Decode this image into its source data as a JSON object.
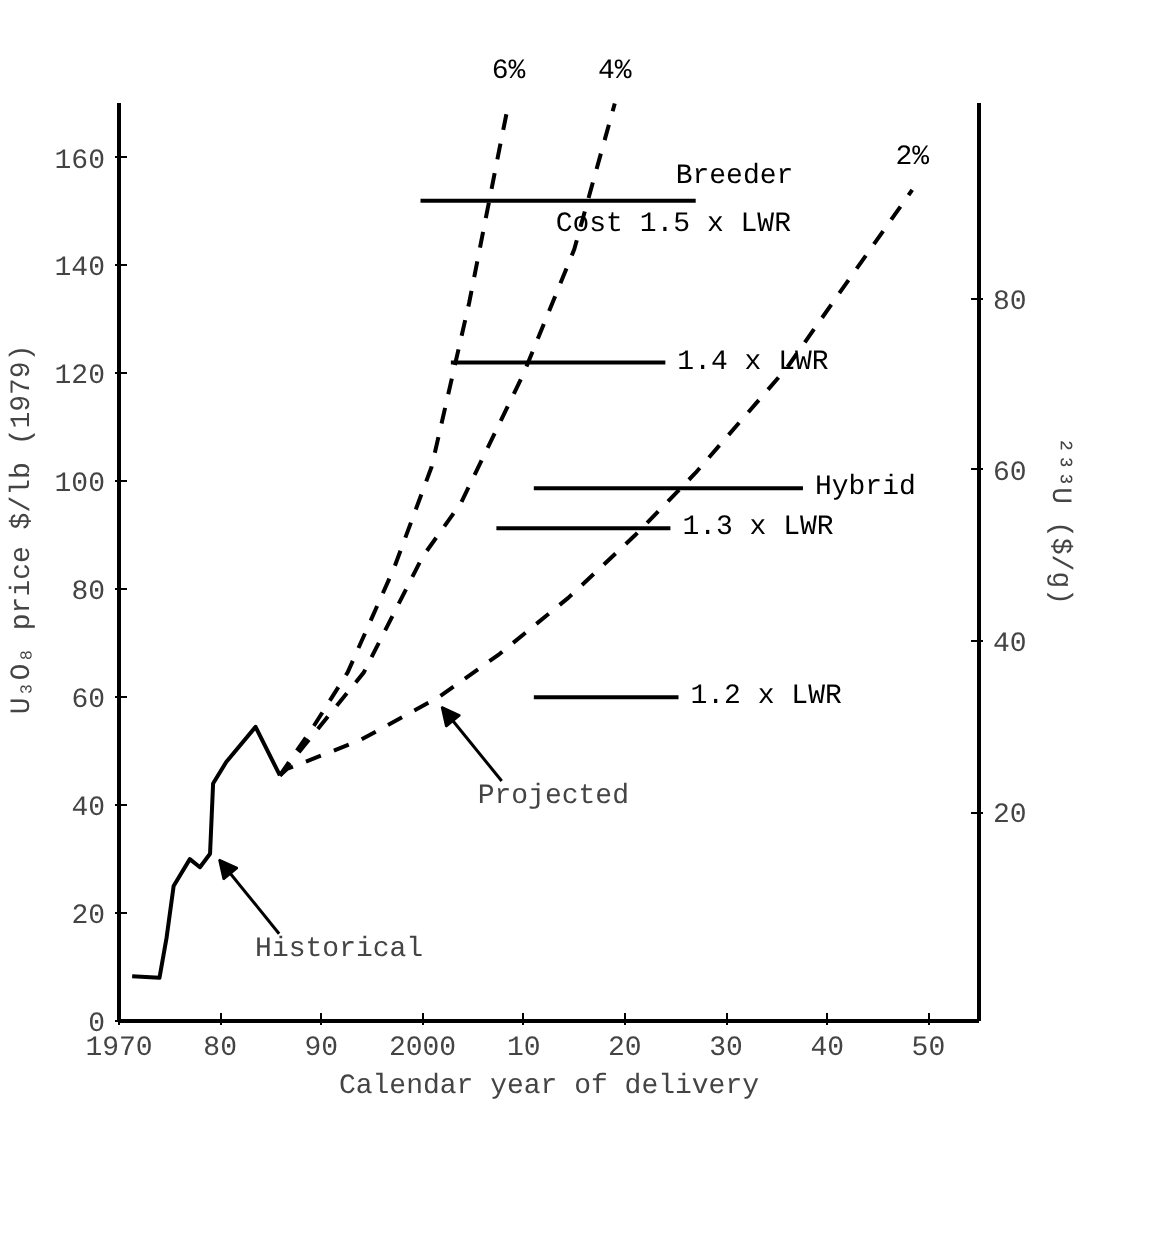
{
  "chart_data": {
    "type": "line",
    "xlabel": "Calendar year of delivery",
    "ylabel": "U₃O₈ price  $/lb (1979)",
    "y2label": "²³³U ($/g)",
    "xlim": [
      1970,
      2055
    ],
    "xticks": [
      1970,
      {
        "value": 1980,
        "label": "80"
      },
      {
        "value": 1990,
        "label": "90"
      },
      2000,
      {
        "value": 2010,
        "label": "10"
      },
      {
        "value": 2020,
        "label": "20"
      },
      {
        "value": 2030,
        "label": "30"
      },
      {
        "value": 2040,
        "label": "40"
      },
      {
        "value": 2050,
        "label": "50"
      }
    ],
    "ylim": [
      0,
      170
    ],
    "yticks": [
      0,
      20,
      40,
      60,
      80,
      100,
      120,
      140,
      160
    ],
    "y2lim": [
      -4.4,
      102.8
    ],
    "y2ticks": [
      20,
      40,
      60,
      80
    ],
    "grid": false,
    "series": [
      {
        "color": "#000000",
        "line_style": "solid",
        "x": [
          1971.3,
          1974,
          1974.7,
          1975.4,
          1977,
          1978,
          1979,
          1979.3,
          1980.6,
          1983.5,
          1985.9
        ],
        "values": [
          8.3,
          8,
          15.4,
          25,
          30,
          28.5,
          31,
          44,
          48,
          54.5,
          45.5
        ]
      },
      {
        "name": "6%",
        "color": "#000000",
        "line_style": "dashed",
        "x": [
          1985.9,
          1989.3,
          1992.6,
          1997.2,
          2000.9,
          2004.6,
          2007.6,
          2008.5
        ],
        "values": [
          45.5,
          54.8,
          64.6,
          84,
          102.7,
          133,
          161.6,
          170
        ]
      },
      {
        "name": "4%",
        "color": "#000000",
        "line_style": "dashed",
        "x": [
          1985.9,
          1989.6,
          1994.2,
          2000,
          2003.8,
          2010,
          2015,
          2019
        ],
        "values": [
          45.5,
          54,
          64.6,
          86,
          96,
          120,
          143,
          170
        ]
      },
      {
        "name": "2%",
        "color": "#000000",
        "line_style": "dashed",
        "x": [
          1985.9,
          1986.6,
          1993.8,
          2001.6,
          2007.6,
          2014.4,
          2021,
          2027,
          2036,
          2042,
          2048.4
        ],
        "values": [
          45.5,
          46.7,
          52,
          60,
          68,
          78.4,
          90,
          101.6,
          121,
          137,
          154
        ]
      },
      {
        "name": "Breeder Cost 1.5 x LWR",
        "color": "#000000",
        "line_style": "solid",
        "x": [
          1999.8,
          2027
        ],
        "values": [
          152,
          152
        ]
      },
      {
        "name": "1.4 x LWR",
        "color": "#000000",
        "line_style": "solid",
        "x": [
          2002.8,
          2024
        ],
        "values": [
          122,
          122
        ]
      },
      {
        "name": "Hybrid",
        "color": "#000000",
        "line_style": "solid",
        "x": [
          2011,
          2037.6
        ],
        "values": [
          98.7,
          98.7
        ]
      },
      {
        "name": "1.3 x LWR",
        "color": "#000000",
        "line_style": "solid",
        "x": [
          2007.3,
          2024.5
        ],
        "values": [
          91.3,
          91.3
        ]
      },
      {
        "name": "1.2 x LWR",
        "color": "#000000",
        "line_style": "solid",
        "x": [
          2011,
          2025.3
        ],
        "values": [
          60,
          60
        ]
      }
    ],
    "annotations": [
      {
        "text": "Projected",
        "x": 2001.5,
        "y": 59.3
      },
      {
        "text": "Historical",
        "x": 1979.5,
        "y": 31
      }
    ]
  }
}
